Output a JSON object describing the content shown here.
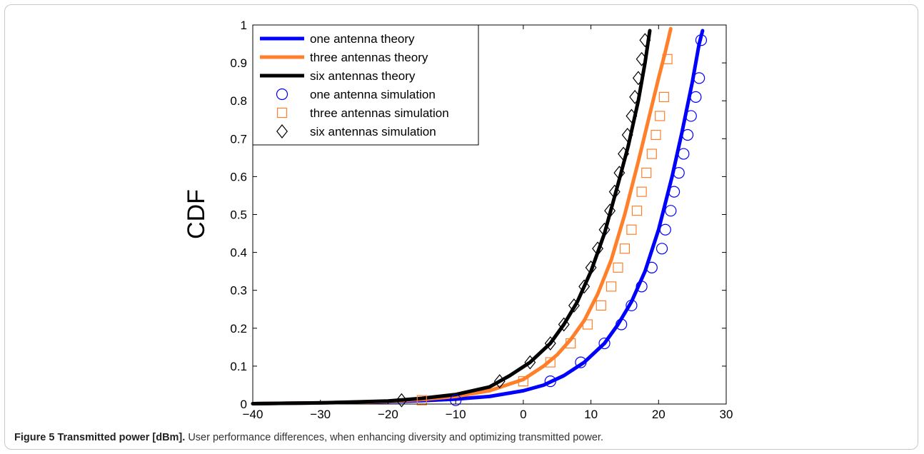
{
  "figure": {
    "label": "Figure 5",
    "title": "Transmitted power [dBm].",
    "text": "User performance differences, when enhancing diversity and optimizing transmitted power."
  },
  "chart_data": {
    "type": "line",
    "xlabel": "",
    "ylabel": "CDF",
    "xlim": [
      -40,
      30
    ],
    "ylim": [
      0,
      1
    ],
    "xticks": [
      -40,
      -30,
      -20,
      -10,
      0,
      10,
      20,
      30
    ],
    "yticks": [
      0,
      0.1,
      0.2,
      0.3,
      0.4,
      0.5,
      0.6,
      0.7,
      0.8,
      0.9,
      1
    ],
    "grid": false,
    "legend_position": "top-left",
    "series": [
      {
        "name": "one antenna theory",
        "style": "line",
        "color": "#0000ff",
        "x": [
          -40,
          -30,
          -20,
          -15,
          -10,
          -5,
          0,
          3,
          6,
          9,
          12,
          14,
          16,
          18,
          20,
          22,
          23.5,
          25,
          26,
          26.5
        ],
        "y": [
          0.001,
          0.003,
          0.006,
          0.009,
          0.013,
          0.02,
          0.035,
          0.05,
          0.075,
          0.11,
          0.16,
          0.21,
          0.27,
          0.35,
          0.46,
          0.6,
          0.72,
          0.85,
          0.95,
          0.985
        ]
      },
      {
        "name": "three antennas theory",
        "style": "line",
        "color": "#ff7f2a",
        "x": [
          -40,
          -30,
          -20,
          -15,
          -10,
          -5,
          0,
          3,
          5,
          7,
          9,
          11,
          13,
          15,
          17,
          18.5,
          20,
          21,
          21.8
        ],
        "y": [
          0.001,
          0.003,
          0.007,
          0.012,
          0.02,
          0.035,
          0.065,
          0.1,
          0.13,
          0.17,
          0.22,
          0.29,
          0.38,
          0.5,
          0.64,
          0.75,
          0.86,
          0.93,
          0.99
        ]
      },
      {
        "name": "six antennas theory",
        "style": "line",
        "color": "#000000",
        "x": [
          -40,
          -30,
          -20,
          -15,
          -10,
          -5,
          -2,
          1,
          4,
          6,
          8,
          10,
          12,
          14,
          15.5,
          17,
          18,
          18.7
        ],
        "y": [
          0.001,
          0.003,
          0.008,
          0.015,
          0.025,
          0.045,
          0.075,
          0.11,
          0.16,
          0.21,
          0.27,
          0.35,
          0.45,
          0.58,
          0.68,
          0.8,
          0.9,
          0.985
        ]
      },
      {
        "name": "one antenna simulation",
        "style": "marker",
        "marker": "circle",
        "color": "#0000ff",
        "x": [
          -10,
          4,
          8.5,
          12,
          14.5,
          16,
          17.5,
          19,
          20.5,
          21,
          21.8,
          22.3,
          23,
          23.7,
          24.3,
          24.8,
          25.5,
          26,
          26.3
        ],
        "y": [
          0.01,
          0.06,
          0.11,
          0.16,
          0.21,
          0.26,
          0.31,
          0.36,
          0.41,
          0.46,
          0.51,
          0.56,
          0.61,
          0.66,
          0.71,
          0.76,
          0.81,
          0.86,
          0.96
        ]
      },
      {
        "name": "three antennas simulation",
        "style": "marker",
        "marker": "square",
        "color": "#ff7f2a",
        "x": [
          -15,
          0,
          4,
          7,
          9.5,
          11.5,
          13,
          14,
          15,
          16,
          16.8,
          17.5,
          18.2,
          19,
          19.6,
          20.2,
          20.8,
          21.3
        ],
        "y": [
          0.01,
          0.06,
          0.11,
          0.16,
          0.21,
          0.26,
          0.31,
          0.36,
          0.41,
          0.46,
          0.51,
          0.56,
          0.61,
          0.66,
          0.71,
          0.76,
          0.81,
          0.91
        ]
      },
      {
        "name": "six antennas simulation",
        "style": "marker",
        "marker": "diamond",
        "color": "#000000",
        "x": [
          -18,
          -3.5,
          1,
          4,
          6,
          7.5,
          9,
          10,
          11,
          12,
          12.8,
          13.5,
          14.2,
          14.8,
          15.4,
          16,
          16.5,
          17,
          17.5,
          18
        ],
        "y": [
          0.01,
          0.06,
          0.11,
          0.16,
          0.21,
          0.26,
          0.31,
          0.36,
          0.41,
          0.46,
          0.51,
          0.56,
          0.61,
          0.66,
          0.71,
          0.76,
          0.81,
          0.86,
          0.91,
          0.96
        ]
      }
    ]
  }
}
